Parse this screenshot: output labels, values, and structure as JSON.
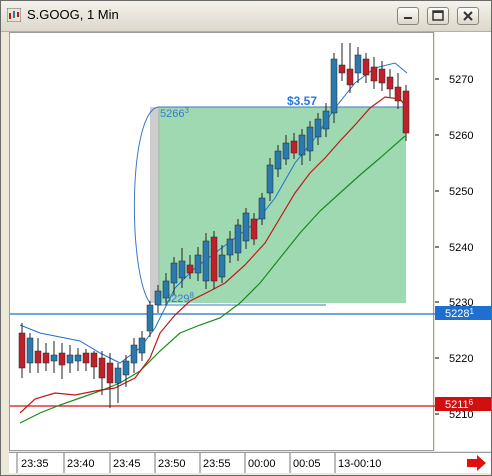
{
  "window": {
    "title": "S.GOOG, 1 Min",
    "minimize": "minimize",
    "maximize": "maximize",
    "close": "close"
  },
  "chart": {
    "price_labels": [
      "5270",
      "5260",
      "5250",
      "5240",
      "5230",
      "5220",
      "5210"
    ],
    "time_labels": [
      "23:35",
      "23:40",
      "23:45",
      "23:50",
      "23:55",
      "00:00",
      "00:05",
      "13-00:10"
    ],
    "blue_line_tag": "5228",
    "red_line_tag": "5211",
    "profit_label": "$3.57",
    "entry_price_main": "5229",
    "entry_price_sup": "8",
    "target_price_main": "5266",
    "target_price_sup": "3",
    "blue_tag_suffix": "1",
    "red_tag_suffix": "6",
    "colors": {
      "up_candle": "#2a7ab0",
      "down_candle": "#c0202a",
      "blue_line": "#1f6fd0",
      "red_line": "#d01010",
      "trade_box": "#9ed9b2",
      "ma_fast": "#c01818",
      "ma_slow": "#1a8a1a"
    },
    "icons": {
      "scroll_right": "red-arrow-right-icon"
    }
  }
}
